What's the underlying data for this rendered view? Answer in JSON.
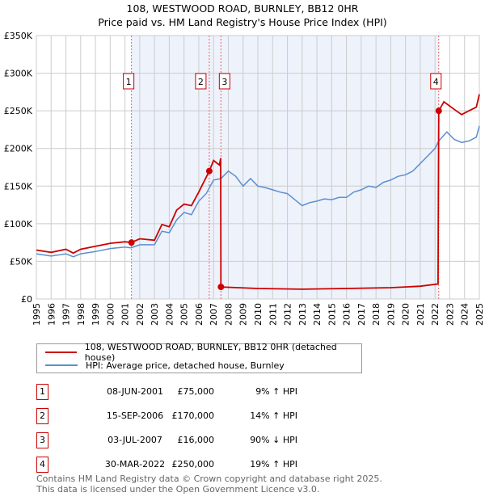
{
  "title": "108, WESTWOOD ROAD, BURNLEY, BB12 0HR",
  "subtitle": "Price paid vs. HM Land Registry's House Price Index (HPI)",
  "legend": [
    "108, WESTWOOD ROAD, BURNLEY, BB12 0HR (detached house)",
    "HPI: Average price, detached house, Burnley"
  ],
  "colors": {
    "property": "#cc0000",
    "hpi": "#5b8fd0",
    "shade": "#eef2fb"
  },
  "sales": [
    {
      "num": "1",
      "date": "08-JUN-2001",
      "price": "£75,000",
      "hpi": "9% ↑ HPI",
      "x": 2001.44,
      "y": 75
    },
    {
      "num": "2",
      "date": "15-SEP-2006",
      "price": "£170,000",
      "hpi": "14% ↑ HPI",
      "x": 2006.71,
      "y": 170
    },
    {
      "num": "3",
      "date": "03-JUL-2007",
      "price": "£16,000",
      "hpi": "90% ↓ HPI",
      "x": 2007.5,
      "y": 16
    },
    {
      "num": "4",
      "date": "30-MAR-2022",
      "price": "£250,000",
      "hpi": "19% ↑ HPI",
      "x": 2022.25,
      "y": 250
    }
  ],
  "footer": [
    "Contains HM Land Registry data © Crown copyright and database right 2025.",
    "This data is licensed under the Open Government Licence v3.0."
  ],
  "chart_data": {
    "type": "line",
    "xlim": [
      1995,
      2025
    ],
    "ylim": [
      0,
      350
    ],
    "yticks": [
      0,
      50,
      100,
      150,
      200,
      250,
      300,
      350
    ],
    "ytick_labels": [
      "£0",
      "£50K",
      "£100K",
      "£150K",
      "£200K",
      "£250K",
      "£300K",
      "£350K"
    ],
    "xtick_labels": [
      "1995",
      "1996",
      "1997",
      "1998",
      "1999",
      "2000",
      "2001",
      "2002",
      "2003",
      "2004",
      "2005",
      "2006",
      "2007",
      "2008",
      "2009",
      "2010",
      "2011",
      "2012",
      "2013",
      "2014",
      "2015",
      "2016",
      "2017",
      "2018",
      "2019",
      "2020",
      "2021",
      "2022",
      "2023",
      "2024",
      "2025"
    ],
    "series": [
      {
        "name": "property",
        "x": [
          1995,
          1996,
          1997,
          1997.5,
          1998,
          1999,
          2000,
          2001,
          2001.44,
          2002,
          2003,
          2003.5,
          2004,
          2004.5,
          2005,
          2005.5,
          2006,
          2006.71,
          2007,
          2007.4,
          2007.48,
          2007.5,
          2010,
          2013,
          2016,
          2019,
          2021,
          2022.2,
          2022.25,
          2022.6,
          2023.3,
          2023.8,
          2024.3,
          2024.8,
          2025
        ],
        "values": [
          65,
          62,
          66,
          61,
          66,
          70,
          74,
          76,
          75,
          80,
          78,
          99,
          96,
          118,
          126,
          124,
          142,
          170,
          184,
          178,
          187,
          16,
          14,
          13,
          14,
          15,
          17,
          20,
          250,
          262,
          252,
          245,
          250,
          255,
          272
        ]
      },
      {
        "name": "hpi",
        "x": [
          1995,
          1996,
          1997,
          1997.5,
          1998,
          1999,
          2000,
          2001,
          2001.4,
          2002,
          2003,
          2003.5,
          2004,
          2004.5,
          2005,
          2005.5,
          2006,
          2006.5,
          2007,
          2007.5,
          2008,
          2008.5,
          2009,
          2009.5,
          2010,
          2010.5,
          2011,
          2011.5,
          2012,
          2012.5,
          2013,
          2013.5,
          2014,
          2014.5,
          2015,
          2015.5,
          2016,
          2016.5,
          2017,
          2017.5,
          2018,
          2018.5,
          2019,
          2019.5,
          2020,
          2020.5,
          2021,
          2021.5,
          2022,
          2022.25,
          2022.8,
          2023.3,
          2023.8,
          2024.3,
          2024.8,
          2025
        ],
        "values": [
          60,
          57,
          60,
          56,
          60,
          63,
          67,
          69,
          68,
          72,
          72,
          90,
          88,
          105,
          115,
          112,
          130,
          140,
          158,
          160,
          170,
          163,
          150,
          160,
          150,
          148,
          145,
          142,
          140,
          132,
          124,
          128,
          130,
          133,
          132,
          135,
          135,
          142,
          145,
          150,
          148,
          155,
          158,
          163,
          165,
          170,
          180,
          190,
          200,
          210,
          222,
          212,
          208,
          210,
          215,
          230
        ]
      }
    ]
  }
}
